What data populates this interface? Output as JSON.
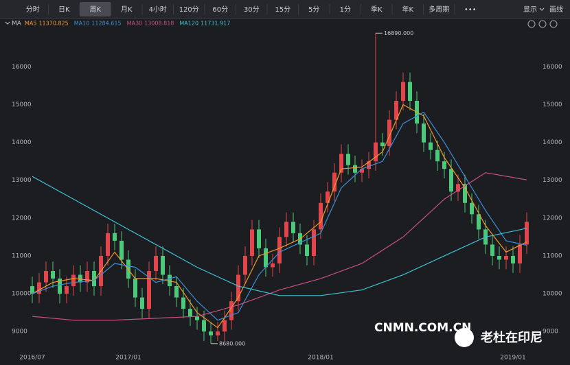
{
  "toolbar": {
    "tabs": [
      "分时",
      "日K",
      "周K",
      "月K",
      "4小时",
      "120分",
      "60分",
      "30分",
      "15分",
      "5分",
      "1分",
      "季K",
      "年K",
      "多周期",
      "•••"
    ],
    "active": 2,
    "display": "显示",
    "draw": "画线"
  },
  "indicator": "MA",
  "watermarks": [
    "CNMN.COM.CN",
    "老杜在印尼"
  ],
  "chart_data": {
    "type": "candlestick",
    "categories": [
      "2016/07",
      null,
      null,
      null,
      null,
      null,
      null,
      null,
      null,
      null,
      null,
      null,
      null,
      null,
      "2017/01",
      null,
      null,
      null,
      null,
      null,
      null,
      null,
      null,
      null,
      null,
      null,
      null,
      null,
      null,
      null,
      null,
      null,
      null,
      null,
      null,
      null,
      null,
      null,
      null,
      null,
      null,
      null,
      "2018/01",
      null,
      null,
      null,
      null,
      null,
      null,
      null,
      null,
      null,
      null,
      null,
      null,
      null,
      null,
      null,
      null,
      null,
      null,
      null,
      null,
      null,
      null,
      null,
      null,
      null,
      null,
      null,
      "2019/01",
      null,
      null
    ],
    "open": [
      10200,
      10000,
      10300,
      10600,
      10400,
      10000,
      10200,
      10500,
      10300,
      10600,
      10200,
      11000,
      11600,
      11400,
      10900,
      10400,
      9900,
      9600,
      10600,
      11000,
      10500,
      10200,
      9900,
      9600,
      9400,
      9300,
      9000,
      8900,
      9000,
      9300,
      9800,
      10500,
      11000,
      11700,
      11200,
      10700,
      10800,
      11500,
      11900,
      11600,
      11300,
      11000,
      11700,
      12400,
      12700,
      13200,
      13700,
      13400,
      13200,
      13300,
      13500,
      14000,
      13900,
      14600,
      15100,
      15600,
      15100,
      14500,
      14000,
      13800,
      13500,
      13300,
      12700,
      12900,
      12400,
      12100,
      11700,
      11300,
      11000,
      10900,
      11000,
      10800,
      11300
    ],
    "high": [
      10450,
      10550,
      10850,
      10850,
      10650,
      10450,
      10750,
      10750,
      10850,
      10850,
      11250,
      11850,
      11850,
      11650,
      11150,
      10650,
      10150,
      10850,
      11250,
      11250,
      10750,
      10450,
      10150,
      9850,
      9650,
      9550,
      9250,
      9250,
      9550,
      10050,
      10750,
      11250,
      11950,
      11950,
      11450,
      11050,
      11750,
      12150,
      12150,
      11850,
      11550,
      11950,
      12650,
      12950,
      13450,
      13950,
      13950,
      13650,
      13550,
      13750,
      16890,
      14250,
      14850,
      15350,
      15850,
      15850,
      15350,
      14750,
      14250,
      14050,
      13750,
      13550,
      13150,
      13150,
      12650,
      12350,
      11950,
      11550,
      11250,
      11250,
      11250,
      11550,
      12150
    ],
    "low": [
      9750,
      9750,
      10050,
      10150,
      9750,
      9750,
      9950,
      10050,
      10050,
      9950,
      9950,
      10750,
      11150,
      10650,
      10150,
      9650,
      9350,
      9350,
      10350,
      10250,
      9950,
      9650,
      9350,
      9150,
      9050,
      8750,
      8680,
      8750,
      8750,
      9050,
      9550,
      10250,
      10750,
      10950,
      10450,
      10450,
      10550,
      11250,
      11350,
      11050,
      10750,
      10750,
      11450,
      12150,
      12450,
      12950,
      13150,
      12950,
      12950,
      13050,
      13250,
      13650,
      13650,
      14350,
      14850,
      14850,
      14250,
      13750,
      13550,
      13250,
      13050,
      12450,
      12450,
      12150,
      11850,
      11450,
      11050,
      10750,
      10650,
      10650,
      10550,
      10550,
      11050
    ],
    "close": [
      10000,
      10300,
      10600,
      10400,
      10000,
      10200,
      10500,
      10300,
      10600,
      10200,
      11000,
      11600,
      11400,
      10900,
      10400,
      9900,
      9600,
      10600,
      11000,
      10500,
      10200,
      9900,
      9600,
      9400,
      9300,
      9000,
      8900,
      9000,
      9300,
      9800,
      10500,
      11000,
      11700,
      11200,
      10700,
      10800,
      11500,
      11900,
      11600,
      11300,
      11000,
      11700,
      12400,
      12700,
      13200,
      13700,
      13400,
      13200,
      13300,
      13500,
      14000,
      13900,
      14600,
      15100,
      15600,
      15100,
      14500,
      14000,
      13800,
      13500,
      13300,
      12700,
      12900,
      12400,
      12100,
      11700,
      11300,
      11000,
      10900,
      11000,
      10800,
      11300,
      11900
    ],
    "up_color": "#e0464c",
    "down_color": "#4cc97a",
    "series": [
      {
        "name": "MA5",
        "legend_value": 11370.825,
        "color": "#f39a2b",
        "x": [
          0,
          3,
          6,
          9,
          12,
          15,
          18,
          21,
          24,
          27,
          30,
          33,
          36,
          39,
          42,
          45,
          48,
          51,
          54,
          57,
          60,
          63,
          66,
          69,
          72
        ],
        "values": [
          10000,
          10300,
          10400,
          10350,
          11100,
          10400,
          10400,
          10300,
          9500,
          9100,
          9900,
          11000,
          11200,
          11450,
          11900,
          13300,
          13350,
          13750,
          15000,
          14700,
          13600,
          12800,
          11800,
          11100,
          11370
        ]
      },
      {
        "name": "MA10",
        "legend_value": 11284.615,
        "color": "#3d8fd8",
        "x": [
          0,
          3,
          6,
          9,
          12,
          15,
          18,
          21,
          24,
          27,
          30,
          33,
          36,
          39,
          42,
          45,
          48,
          51,
          54,
          57,
          60,
          63,
          66,
          69,
          72
        ],
        "values": [
          10000,
          10200,
          10300,
          10350,
          10800,
          10700,
          10300,
          10450,
          9800,
          9300,
          9500,
          10500,
          11100,
          11350,
          11600,
          12800,
          13300,
          13500,
          14500,
          14800,
          14000,
          13100,
          12200,
          11400,
          11280
        ]
      },
      {
        "name": "MA30",
        "legend_value": 13008.818,
        "color": "#c8527f",
        "x": [
          0,
          6,
          12,
          18,
          24,
          30,
          36,
          42,
          48,
          54,
          60,
          66,
          72
        ],
        "values": [
          9400,
          9300,
          9300,
          9350,
          9400,
          9700,
          10100,
          10400,
          10800,
          11500,
          12500,
          13200,
          13010
        ]
      },
      {
        "name": "MA120",
        "legend_value": 11731.917,
        "color": "#3ec3d4",
        "x": [
          0,
          6,
          12,
          18,
          24,
          30,
          36,
          42,
          48,
          54,
          60,
          66,
          72
        ],
        "values": [
          13100,
          12500,
          11900,
          11300,
          10700,
          10200,
          9950,
          9950,
          10100,
          10500,
          11000,
          11500,
          11730
        ]
      }
    ],
    "annotations": [
      "16890.000",
      "8680.000"
    ],
    "ylim": [
      8550,
      16950
    ],
    "yticks": [
      9000,
      10000,
      11000,
      12000,
      13000,
      14000,
      15000,
      16000
    ],
    "grid": false
  }
}
